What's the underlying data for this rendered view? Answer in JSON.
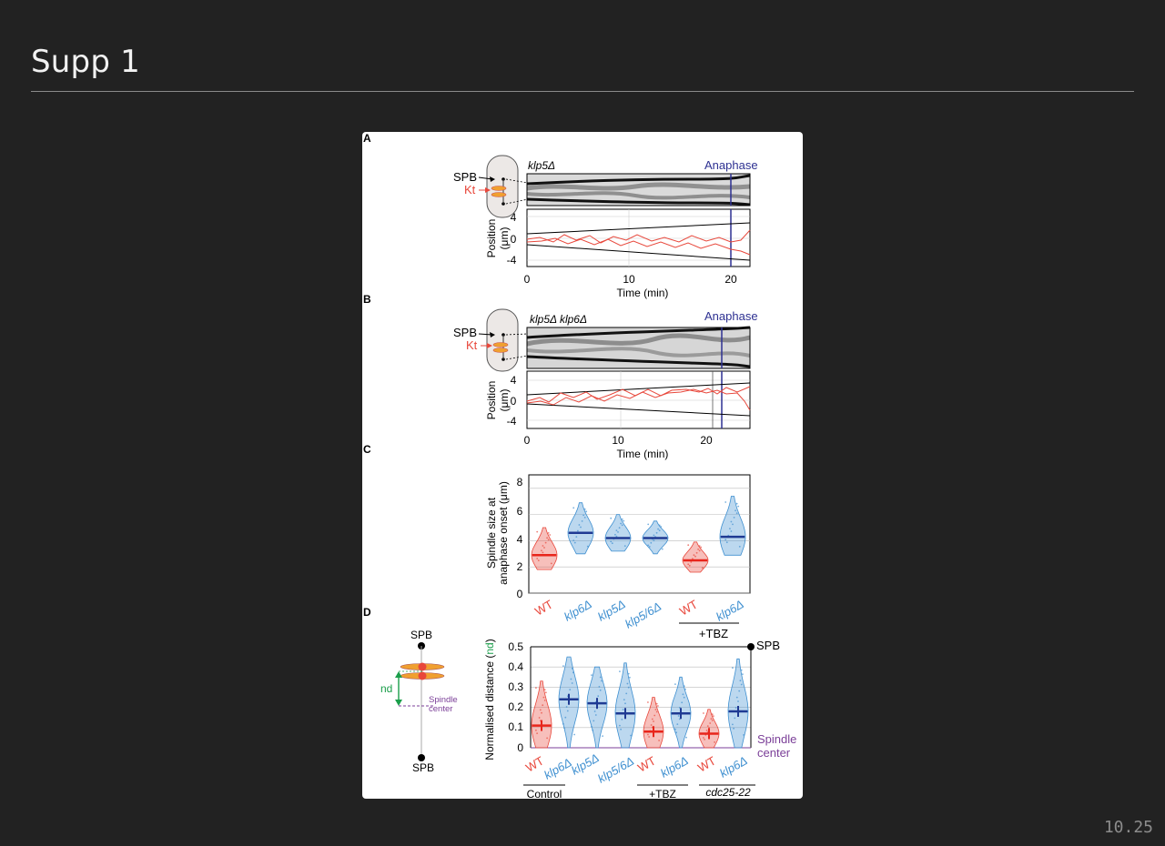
{
  "slide": {
    "title": "Supp 1",
    "number": "10.25"
  },
  "figure": {
    "panel_a": {
      "letter": "A",
      "strain": "klp5Δ",
      "anaphase_label": "Anaphase",
      "spb_label": "SPB",
      "kt_label": "Kt",
      "ylabel_line1": "Position",
      "ylabel_line2": "(μm)",
      "yticks": [
        "4",
        "0",
        "-4"
      ],
      "xticks": [
        "0",
        "10",
        "20"
      ],
      "xlabel": "Time (min)"
    },
    "panel_b": {
      "letter": "B",
      "strain": "klp5Δ klp6Δ",
      "anaphase_label": "Anaphase",
      "spb_label": "SPB",
      "kt_label": "Kt",
      "ylabel_line1": "Position",
      "ylabel_line2": "(μm)",
      "yticks": [
        "4",
        "0",
        "-4"
      ],
      "xticks": [
        "0",
        "10",
        "20"
      ],
      "xlabel": "Time (min)"
    },
    "panel_c": {
      "letter": "C",
      "ylabel_line1": "Spindle size at",
      "ylabel_line2": "anaphase onset (μm)",
      "yticks": [
        "8",
        "6",
        "4",
        "2",
        "0"
      ],
      "categories": [
        "WT",
        "klp6Δ",
        "klp5Δ",
        "klp5/6Δ",
        "WT",
        "klp6Δ"
      ],
      "group_label": "+TBZ"
    },
    "panel_d": {
      "letter": "D",
      "spb_top": "SPB",
      "spb_bottom": "SPB",
      "nd_label": "nd",
      "spindle_center_line1": "Spindle",
      "spindle_center_line2": "center",
      "ylabel_prefix": "Normalised distance (",
      "ylabel_nd": "nd",
      "ylabel_suffix": ")",
      "yticks": [
        "0.5",
        "0.4",
        "0.3",
        "0.2",
        "0.1",
        "0"
      ],
      "categories": [
        "WT",
        "klp6Δ",
        "klp5Δ",
        "klp5/6Δ",
        "WT",
        "klp6Δ",
        "WT",
        "klp6Δ"
      ],
      "right_spb": "SPB",
      "right_center_line1": "Spindle",
      "right_center_line2": "center",
      "group_control": "Control",
      "group_tbz": "+TBZ",
      "group_cdc": "cdc25-22"
    },
    "colors": {
      "wt_red": "#e8473b",
      "mutant_blue": "#3e8fd0",
      "anaphase_navy": "#2e3192",
      "nd_green": "#1a9e4a",
      "center_purple": "#7b3f98",
      "kinetochore_orange": "#f0a030"
    }
  },
  "chart_data": [
    {
      "type": "violin",
      "panel": "C",
      "ylabel": "Spindle size at anaphase onset (μm)",
      "ylim": [
        0,
        8.5
      ],
      "categories": [
        "WT",
        "klp6Δ",
        "klp5Δ",
        "klp5/6Δ",
        "WT",
        "klp6Δ"
      ],
      "group_labels": [
        {
          "label": "+TBZ",
          "categories": [
            4,
            5
          ]
        }
      ],
      "values": [
        2.9,
        4.6,
        4.2,
        4.2,
        2.5,
        4.3
      ],
      "ranges": [
        [
          1.8,
          5.0
        ],
        [
          3.0,
          6.9
        ],
        [
          3.2,
          6.0
        ],
        [
          3.0,
          5.5
        ],
        [
          1.6,
          3.9
        ],
        [
          2.9,
          7.4
        ]
      ],
      "colors": [
        "#e8473b",
        "#3e8fd0",
        "#3e8fd0",
        "#3e8fd0",
        "#e8473b",
        "#3e8fd0"
      ]
    },
    {
      "type": "violin",
      "panel": "D",
      "ylabel": "Normalised distance (nd)",
      "ylim": [
        0,
        0.5
      ],
      "categories": [
        "WT",
        "klp6Δ",
        "klp5Δ",
        "klp5/6Δ",
        "WT",
        "klp6Δ",
        "WT",
        "klp6Δ"
      ],
      "group_labels": [
        {
          "label": "Control",
          "categories": [
            0,
            1
          ]
        },
        {
          "label": "+TBZ",
          "categories": [
            4,
            5
          ]
        },
        {
          "label": "cdc25-22",
          "categories": [
            6,
            7
          ]
        }
      ],
      "values": [
        0.11,
        0.24,
        0.22,
        0.17,
        0.08,
        0.17,
        0.07,
        0.18
      ],
      "ranges": [
        [
          0,
          0.33
        ],
        [
          0,
          0.45
        ],
        [
          0,
          0.4
        ],
        [
          0,
          0.42
        ],
        [
          0,
          0.25
        ],
        [
          0,
          0.35
        ],
        [
          0,
          0.19
        ],
        [
          0,
          0.44
        ]
      ],
      "colors": [
        "#e8473b",
        "#3e8fd0",
        "#3e8fd0",
        "#3e8fd0",
        "#e8473b",
        "#3e8fd0",
        "#e8473b",
        "#3e8fd0"
      ]
    },
    {
      "type": "line",
      "panel": "A",
      "xlabel": "Time (min)",
      "ylabel": "Position (μm)",
      "xlim": [
        0,
        22
      ],
      "ylim": [
        -4,
        4
      ],
      "xticks": [
        0,
        10,
        20
      ],
      "yticks": [
        4,
        0,
        -4
      ],
      "anaphase_time": 20,
      "series_colors": [
        "#000000",
        "#e8473b"
      ]
    },
    {
      "type": "line",
      "panel": "B",
      "xlabel": "Time (min)",
      "ylabel": "Position (μm)",
      "xlim": [
        0,
        25
      ],
      "ylim": [
        -4,
        4
      ],
      "xticks": [
        0,
        10,
        20
      ],
      "yticks": [
        4,
        0,
        -4
      ],
      "anaphase_time": 22,
      "series_colors": [
        "#000000",
        "#e8473b"
      ]
    }
  ]
}
